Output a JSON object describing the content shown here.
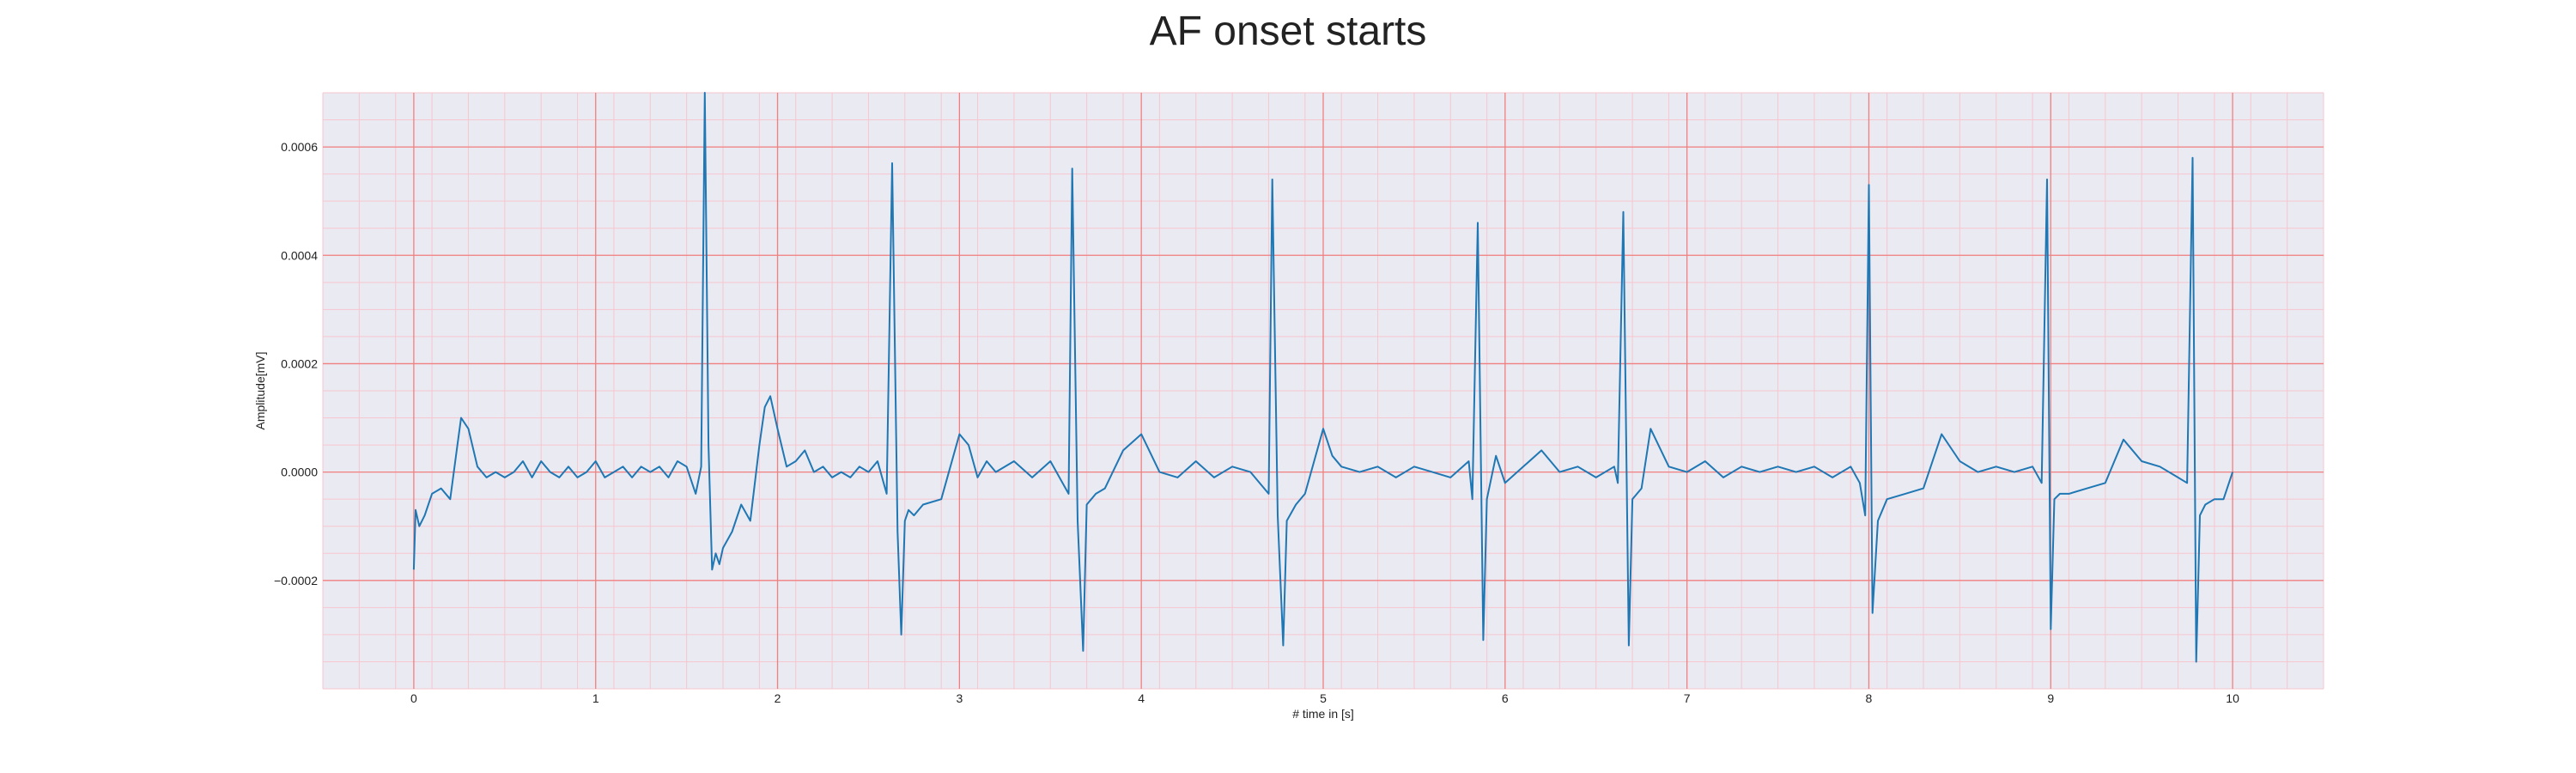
{
  "chart_data": {
    "type": "line",
    "title": "AF onset starts",
    "xlabel": "# time in [s]",
    "ylabel": "Amplitude[mV]",
    "xlim": [
      -0.5,
      10.5
    ],
    "ylim": [
      -0.0004,
      0.0007
    ],
    "x_ticks": [
      0,
      1,
      2,
      3,
      4,
      5,
      6,
      7,
      8,
      9,
      10
    ],
    "x_tick_labels": [
      "0",
      "1",
      "2",
      "3",
      "4",
      "5",
      "6",
      "7",
      "8",
      "9",
      "10"
    ],
    "y_ticks": [
      -0.0002,
      0.0,
      0.0002,
      0.0004,
      0.0006
    ],
    "y_tick_labels": [
      "−0.0002",
      "0.0000",
      "0.0002",
      "0.0004",
      "0.0006"
    ],
    "grid": true,
    "legend": "none",
    "background": "#eaeaf2",
    "major_grid_color": "#f08080",
    "minor_grid_color": "#f7c6cf",
    "line_color": "#1f77b4",
    "series": [
      {
        "x": [
          0.0,
          0.01,
          0.03,
          0.06,
          0.1,
          0.15,
          0.2,
          0.24,
          0.26,
          0.3,
          0.35,
          0.4,
          0.45,
          0.5,
          0.55,
          0.6,
          0.65,
          0.7,
          0.75,
          0.8,
          0.85,
          0.9,
          0.95,
          1.0,
          1.05,
          1.1,
          1.15,
          1.2,
          1.25,
          1.3,
          1.35,
          1.4,
          1.45,
          1.5,
          1.55,
          1.58,
          1.6,
          1.62,
          1.64,
          1.66,
          1.68,
          1.7,
          1.75,
          1.8,
          1.85,
          1.9,
          1.93,
          1.96,
          2.0,
          2.05,
          2.1,
          2.15,
          2.2,
          2.25,
          2.3,
          2.35,
          2.4,
          2.45,
          2.5,
          2.55,
          2.6,
          2.63,
          2.66,
          2.68,
          2.7,
          2.72,
          2.75,
          2.8,
          2.9,
          3.0,
          3.05,
          3.1,
          3.15,
          3.2,
          3.3,
          3.4,
          3.5,
          3.6,
          3.62,
          3.65,
          3.68,
          3.7,
          3.75,
          3.8,
          3.9,
          4.0,
          4.1,
          4.2,
          4.3,
          4.4,
          4.5,
          4.6,
          4.7,
          4.72,
          4.75,
          4.78,
          4.8,
          4.85,
          4.9,
          5.0,
          5.05,
          5.1,
          5.2,
          5.3,
          5.4,
          5.5,
          5.6,
          5.7,
          5.8,
          5.82,
          5.85,
          5.88,
          5.9,
          5.95,
          6.0,
          6.1,
          6.2,
          6.3,
          6.4,
          6.5,
          6.6,
          6.62,
          6.65,
          6.68,
          6.7,
          6.75,
          6.8,
          6.9,
          7.0,
          7.1,
          7.2,
          7.3,
          7.4,
          7.5,
          7.6,
          7.7,
          7.8,
          7.9,
          7.95,
          7.98,
          8.0,
          8.02,
          8.05,
          8.1,
          8.2,
          8.3,
          8.4,
          8.5,
          8.6,
          8.7,
          8.8,
          8.9,
          8.95,
          8.98,
          9.0,
          9.02,
          9.05,
          9.1,
          9.2,
          9.3,
          9.4,
          9.5,
          9.6,
          9.7,
          9.75,
          9.78,
          9.8,
          9.82,
          9.85,
          9.9,
          9.95,
          10.0
        ],
        "y": [
          -0.00018,
          -7e-05,
          -0.0001,
          -8e-05,
          -4e-05,
          -3e-05,
          -5e-05,
          5e-05,
          0.0001,
          8e-05,
          1e-05,
          -1e-05,
          0.0,
          -1e-05,
          0.0,
          2e-05,
          -1e-05,
          2e-05,
          0.0,
          -1e-05,
          1e-05,
          -1e-05,
          0.0,
          2e-05,
          -1e-05,
          0.0,
          1e-05,
          -1e-05,
          1e-05,
          0.0,
          1e-05,
          -1e-05,
          2e-05,
          1e-05,
          -4e-05,
          1e-05,
          0.0007,
          5e-05,
          -0.00018,
          -0.00015,
          -0.00017,
          -0.00014,
          -0.00011,
          -6e-05,
          -9e-05,
          5e-05,
          0.00012,
          0.00014,
          8e-05,
          1e-05,
          2e-05,
          4e-05,
          0.0,
          1e-05,
          -1e-05,
          0.0,
          -1e-05,
          1e-05,
          0.0,
          2e-05,
          -4e-05,
          0.00057,
          -0.00011,
          -0.0003,
          -9e-05,
          -7e-05,
          -8e-05,
          -6e-05,
          -5e-05,
          7e-05,
          5e-05,
          -1e-05,
          2e-05,
          0.0,
          2e-05,
          -1e-05,
          2e-05,
          -4e-05,
          0.00056,
          -9e-05,
          -0.00033,
          -6e-05,
          -4e-05,
          -3e-05,
          4e-05,
          7e-05,
          0.0,
          -1e-05,
          2e-05,
          -1e-05,
          1e-05,
          0.0,
          -4e-05,
          0.00054,
          -8e-05,
          -0.00032,
          -9e-05,
          -6e-05,
          -4e-05,
          8e-05,
          3e-05,
          1e-05,
          0.0,
          1e-05,
          -1e-05,
          1e-05,
          0.0,
          -1e-05,
          2e-05,
          -5e-05,
          0.00046,
          -0.00031,
          -5e-05,
          3e-05,
          -2e-05,
          1e-05,
          4e-05,
          0.0,
          1e-05,
          -1e-05,
          1e-05,
          -2e-05,
          0.00048,
          -0.00032,
          -5e-05,
          -3e-05,
          8e-05,
          1e-05,
          0.0,
          2e-05,
          -1e-05,
          1e-05,
          0.0,
          1e-05,
          0.0,
          1e-05,
          -1e-05,
          1e-05,
          -2e-05,
          -8e-05,
          0.00053,
          -0.00026,
          -9e-05,
          -5e-05,
          -4e-05,
          -3e-05,
          7e-05,
          2e-05,
          0.0,
          1e-05,
          0.0,
          1e-05,
          -2e-05,
          0.00054,
          -0.00029,
          -5e-05,
          -4e-05,
          -4e-05,
          -3e-05,
          -2e-05,
          6e-05,
          2e-05,
          1e-05,
          -1e-05,
          -2e-05,
          0.00058,
          -0.00035,
          -8e-05,
          -6e-05,
          -5e-05,
          -5e-05,
          0.0
        ]
      }
    ]
  }
}
